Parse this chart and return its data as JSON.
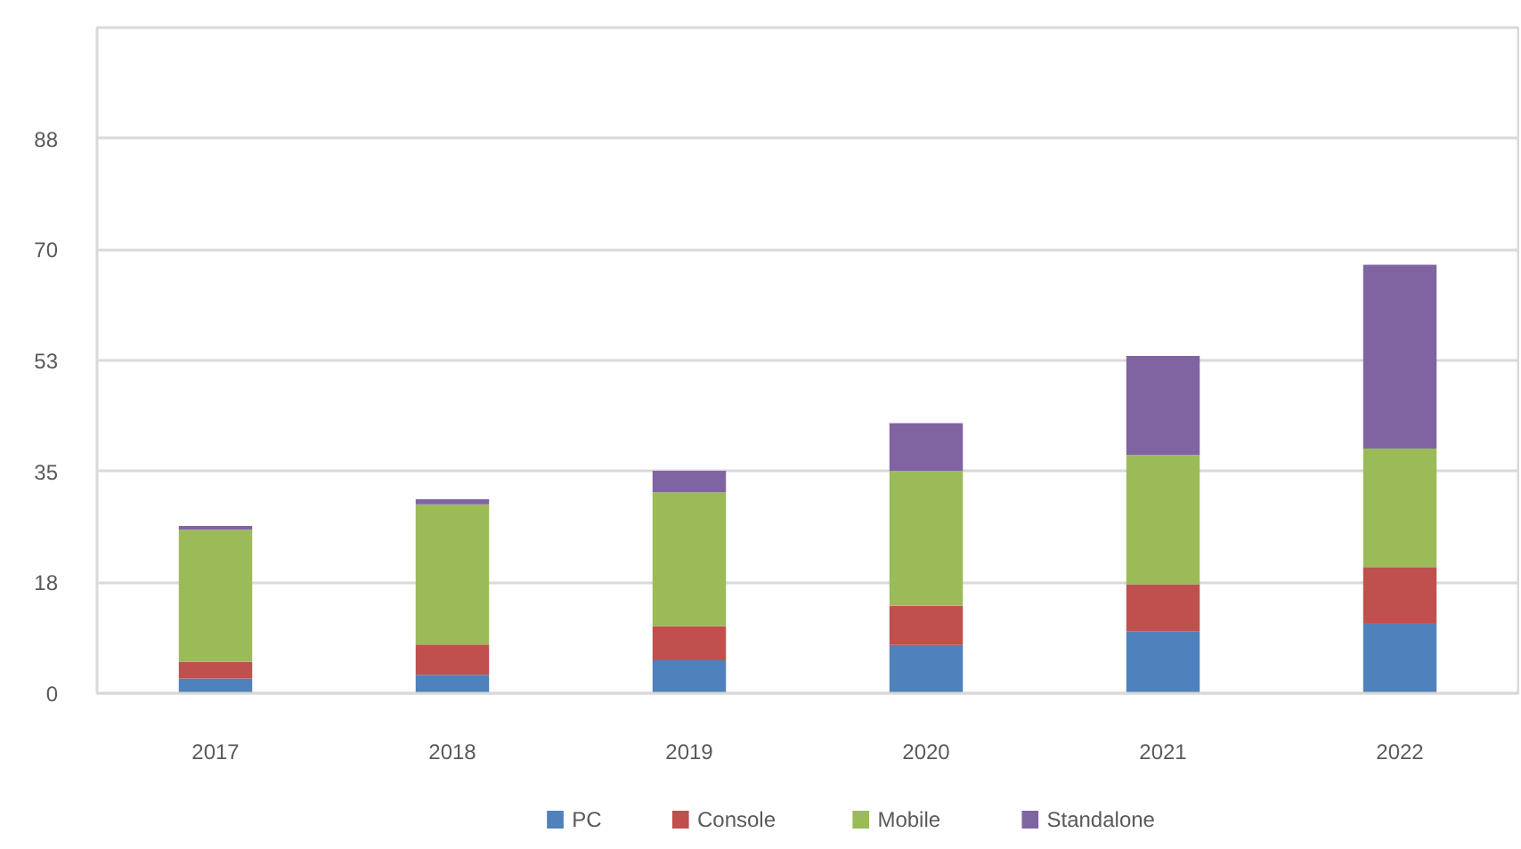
{
  "chart_data": {
    "type": "bar",
    "stacked": true,
    "categories": [
      "2017",
      "2018",
      "2019",
      "2020",
      "2021",
      "2022"
    ],
    "series": [
      {
        "name": "PC",
        "color": "#4f81bd",
        "values": [
          2.3,
          2.9,
          5.2,
          7.6,
          9.8,
          11.1
        ]
      },
      {
        "name": "Console",
        "color": "#c0504d",
        "values": [
          2.7,
          4.8,
          5.4,
          6.2,
          7.4,
          8.8
        ]
      },
      {
        "name": "Mobile",
        "color": "#9bbb59",
        "values": [
          20.8,
          22.1,
          21.1,
          21.3,
          20.4,
          18.7
        ]
      },
      {
        "name": "Standalone",
        "color": "#8064a2",
        "values": [
          0.6,
          0.8,
          3.4,
          7.5,
          15.6,
          29.0
        ]
      }
    ],
    "ylim": [
      0,
      105
    ],
    "yticks": [
      0,
      {
        "value": 17.5,
        "label": "18"
      },
      35,
      {
        "value": 52.5,
        "label": "53"
      },
      70,
      {
        "value": 87.5,
        "label": "88"
      }
    ],
    "grid": "y",
    "legend": "bottom"
  }
}
